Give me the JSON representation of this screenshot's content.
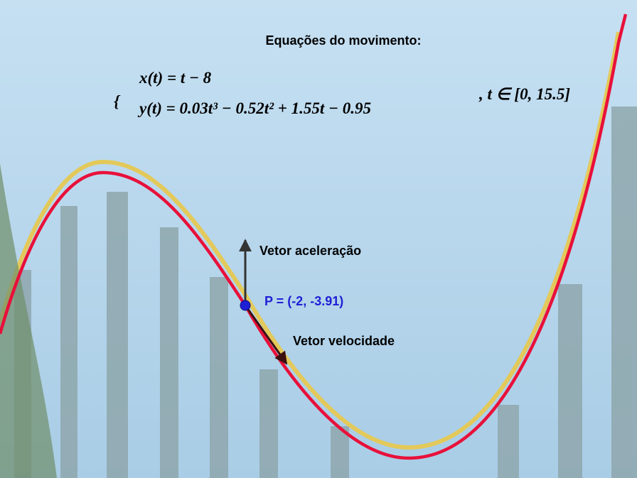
{
  "header": {
    "title": "Equações do movimento:"
  },
  "equations": {
    "x": "x(t) = t − 8",
    "y": "y(t) = 0.03t³ − 0.52t² + 1.55t − 0.95",
    "domain": ", t ∈ [0, 15.5]"
  },
  "labels": {
    "acceleration": "Vetor aceleração",
    "point": "P = (-2, -3.91)",
    "velocity": "Vetor velocidade"
  }
}
